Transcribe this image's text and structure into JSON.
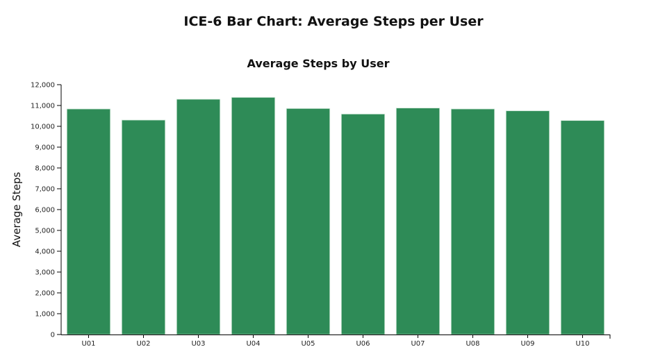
{
  "page_title": "ICE-6 Bar Chart: Average Steps per User",
  "chart_data": {
    "type": "bar",
    "title": "Average Steps by User",
    "xlabel": "",
    "ylabel": "Average Steps",
    "categories": [
      "U01",
      "U02",
      "U03",
      "U04",
      "U05",
      "U06",
      "U07",
      "U08",
      "U09",
      "U10"
    ],
    "values": [
      10833,
      10300,
      11300,
      11389,
      10855,
      10589,
      10878,
      10833,
      10744,
      10278
    ],
    "ylim": [
      0,
      12000
    ],
    "yticks": [
      0,
      1000,
      2000,
      3000,
      4000,
      5000,
      6000,
      7000,
      8000,
      9000,
      10000,
      11000,
      12000
    ],
    "ytick_labels": [
      "0",
      "1,000",
      "2,000",
      "3,000",
      "4,000",
      "5,000",
      "6,000",
      "7,000",
      "8,000",
      "9,000",
      "10,000",
      "11,000",
      "12,000"
    ],
    "bar_color": "#2e8b57",
    "grid": false
  }
}
